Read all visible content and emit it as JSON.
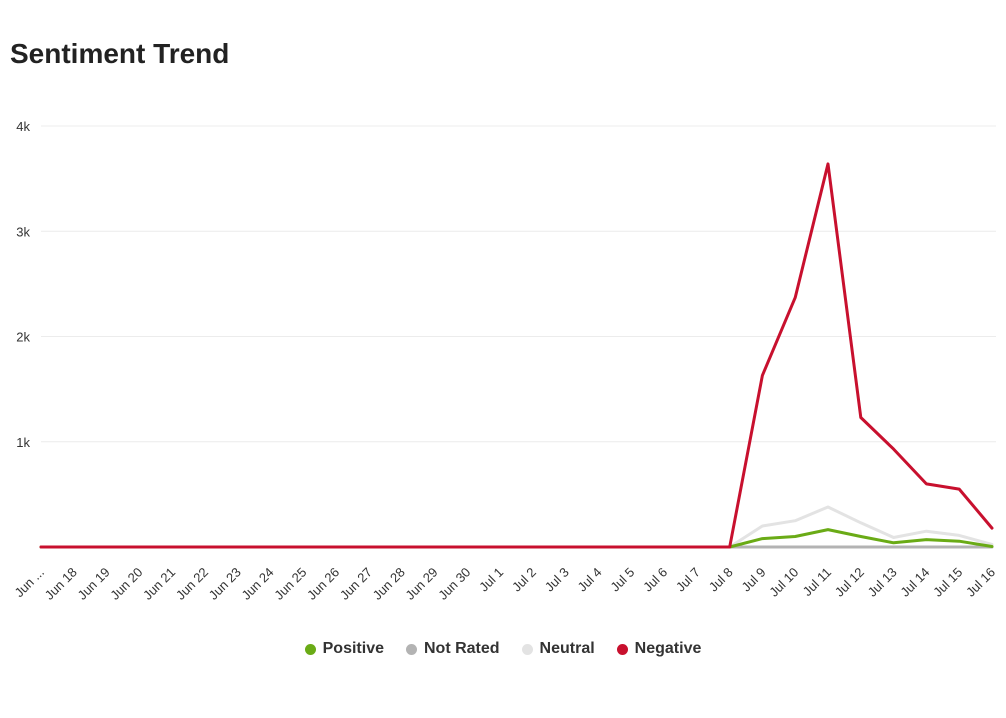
{
  "chart_data": {
    "type": "line",
    "title": "Sentiment Trend",
    "xlabel": "",
    "ylabel": "",
    "ylim": [
      0,
      4000
    ],
    "y_ticks": [
      {
        "value": 1000,
        "label": "1k"
      },
      {
        "value": 2000,
        "label": "2k"
      },
      {
        "value": 3000,
        "label": "3k"
      },
      {
        "value": 4000,
        "label": "4k"
      }
    ],
    "grid": true,
    "legend_position": "bottom-center",
    "categories": [
      "Jun ...",
      "Jun 18",
      "Jun 19",
      "Jun 20",
      "Jun 21",
      "Jun 22",
      "Jun 23",
      "Jun 24",
      "Jun 25",
      "Jun 26",
      "Jun 27",
      "Jun 28",
      "Jun 29",
      "Jun 30",
      "Jul 1",
      "Jul 2",
      "Jul 3",
      "Jul 4",
      "Jul 5",
      "Jul 6",
      "Jul 7",
      "Jul 8",
      "Jul 9",
      "Jul 10",
      "Jul 11",
      "Jul 12",
      "Jul 13",
      "Jul 14",
      "Jul 15",
      "Jul 16"
    ],
    "series": [
      {
        "name": "Positive",
        "color": "#6aab16",
        "values": [
          0,
          0,
          0,
          0,
          0,
          0,
          0,
          0,
          0,
          0,
          0,
          0,
          0,
          0,
          0,
          0,
          0,
          0,
          0,
          0,
          0,
          0,
          80,
          100,
          165,
          100,
          40,
          70,
          55,
          5
        ]
      },
      {
        "name": "Not Rated",
        "color": "#b3b3b3",
        "values": [
          0,
          0,
          0,
          0,
          0,
          0,
          0,
          0,
          0,
          0,
          0,
          0,
          0,
          0,
          0,
          0,
          0,
          0,
          0,
          0,
          0,
          0,
          0,
          0,
          0,
          0,
          0,
          0,
          0,
          0
        ]
      },
      {
        "name": "Neutral",
        "color": "#e3e3e3",
        "values": [
          0,
          0,
          0,
          0,
          0,
          0,
          0,
          0,
          0,
          0,
          0,
          0,
          0,
          0,
          0,
          0,
          0,
          0,
          0,
          0,
          0,
          0,
          200,
          250,
          380,
          230,
          90,
          150,
          110,
          25
        ]
      },
      {
        "name": "Negative",
        "color": "#c8102e",
        "values": [
          0,
          0,
          0,
          0,
          0,
          0,
          0,
          0,
          0,
          0,
          0,
          0,
          0,
          0,
          0,
          0,
          0,
          0,
          0,
          0,
          0,
          0,
          1630,
          2370,
          3640,
          1230,
          930,
          600,
          550,
          180
        ]
      }
    ]
  }
}
